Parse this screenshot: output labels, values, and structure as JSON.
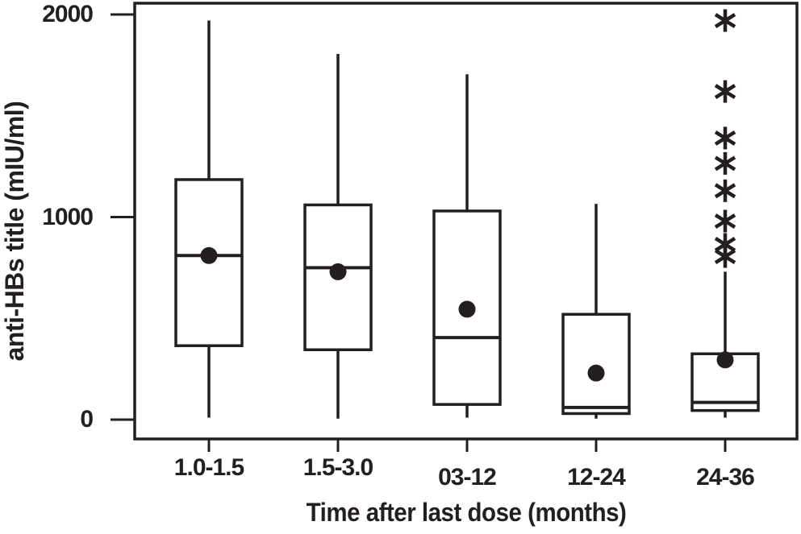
{
  "chart_data": {
    "type": "boxplot",
    "title": "",
    "xlabel": "Time after last dose (months)",
    "ylabel": "anti-HBs title (mIU/ml)",
    "categories": [
      "1.0-1.5",
      "1.5-3.0",
      "03-12",
      "12-24",
      "24-36"
    ],
    "yticks": [
      {
        "value": 0,
        "label": "0"
      },
      {
        "value": 1000,
        "label": "1000"
      },
      {
        "value": 2000,
        "label": "2000"
      }
    ],
    "ylim": [
      -95,
      2055
    ],
    "grid": false,
    "legend": "none",
    "line_color": "#231f20",
    "marker_color": "#231f20",
    "background_color": "#ffffff",
    "series": [
      {
        "category": "1.0-1.5",
        "whisker_low": 10,
        "q1": 365,
        "median": 810,
        "mean": 810,
        "q3": 1185,
        "whisker_high": 1970,
        "outliers": []
      },
      {
        "category": "1.5-3.0",
        "whisker_low": 5,
        "q1": 345,
        "median": 750,
        "mean": 730,
        "q3": 1060,
        "whisker_high": 1805,
        "outliers": []
      },
      {
        "category": "03-12",
        "whisker_low": 10,
        "q1": 75,
        "median": 405,
        "mean": 545,
        "q3": 1030,
        "whisker_high": 1705,
        "outliers": []
      },
      {
        "category": "12-24",
        "whisker_low": 5,
        "q1": 30,
        "median": 60,
        "mean": 230,
        "q3": 520,
        "whisker_high": 1065,
        "outliers": []
      },
      {
        "category": "24-36",
        "whisker_low": 10,
        "q1": 45,
        "median": 85,
        "mean": 295,
        "q3": 325,
        "whisker_high": 730,
        "outliers": [
          1970,
          1620,
          1390,
          1265,
          1130,
          980,
          865,
          805
        ]
      }
    ]
  }
}
